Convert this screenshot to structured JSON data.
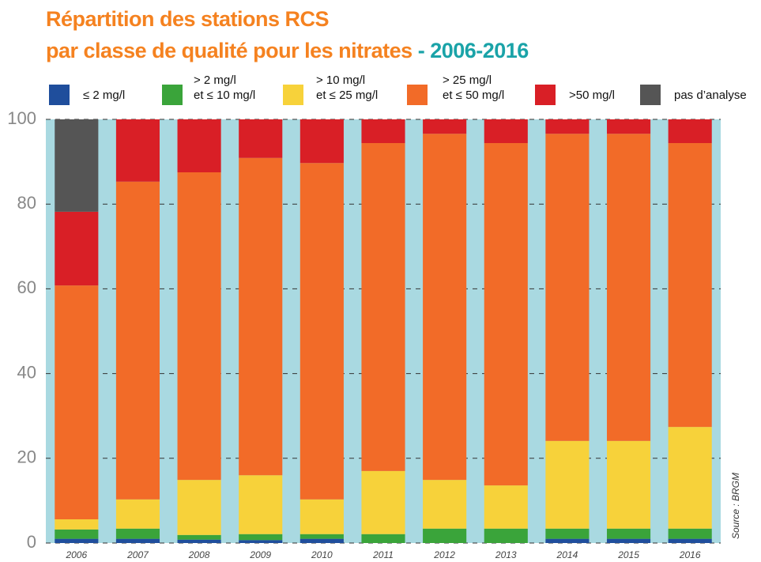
{
  "chart_data": {
    "type": "stacked_bar",
    "title": "Répartition des stations RCS\npar classe de qualité pour les nitrates",
    "subtitle": "- 2006-2016",
    "source": "Source : BRGM",
    "categories": [
      "2006",
      "2007",
      "2008",
      "2009",
      "2010",
      "2011",
      "2012",
      "2013",
      "2014",
      "2015",
      "2016"
    ],
    "series": [
      {
        "name": "≤ 2 mg/l",
        "color": "#1f4e9c",
        "values": [
          1,
          1,
          0.8,
          0.7,
          1,
          0,
          0,
          0,
          1,
          1,
          1
        ]
      },
      {
        "name": "> 2 mg/l\net ≤ 10 mg/l",
        "color": "#3aa43a",
        "values": [
          2.2,
          2.4,
          1.1,
          1.4,
          1.1,
          2.1,
          3.4,
          3.4,
          2.4,
          2.4,
          2.4
        ]
      },
      {
        "name": "> 10 mg/l\net ≤ 25 mg/l",
        "color": "#f7d23a",
        "values": [
          2.4,
          6.9,
          13,
          13.9,
          8.2,
          14.9,
          11.5,
          10.2,
          20.7,
          20.7,
          24
        ]
      },
      {
        "name": "> 25 mg/l\net ≤ 50 mg/l",
        "color": "#f26b28",
        "values": [
          55.2,
          75,
          72.6,
          74.9,
          79.4,
          77.4,
          81.7,
          80.8,
          72.5,
          72.5,
          67
        ]
      },
      {
        "name": ">50 mg/l",
        "color": "#d91f26",
        "values": [
          17.4,
          14.7,
          12.5,
          9.1,
          10.3,
          5.6,
          3.4,
          5.6,
          3.4,
          3.4,
          5.6
        ]
      },
      {
        "name": "pas d’analyse",
        "color": "#555555",
        "values": [
          21.8,
          0,
          0,
          0,
          0,
          0,
          0,
          0,
          0,
          0,
          0
        ]
      }
    ],
    "ylim": [
      0,
      100
    ],
    "yticks": [
      0,
      20,
      40,
      60,
      80,
      100
    ],
    "grid": true
  }
}
